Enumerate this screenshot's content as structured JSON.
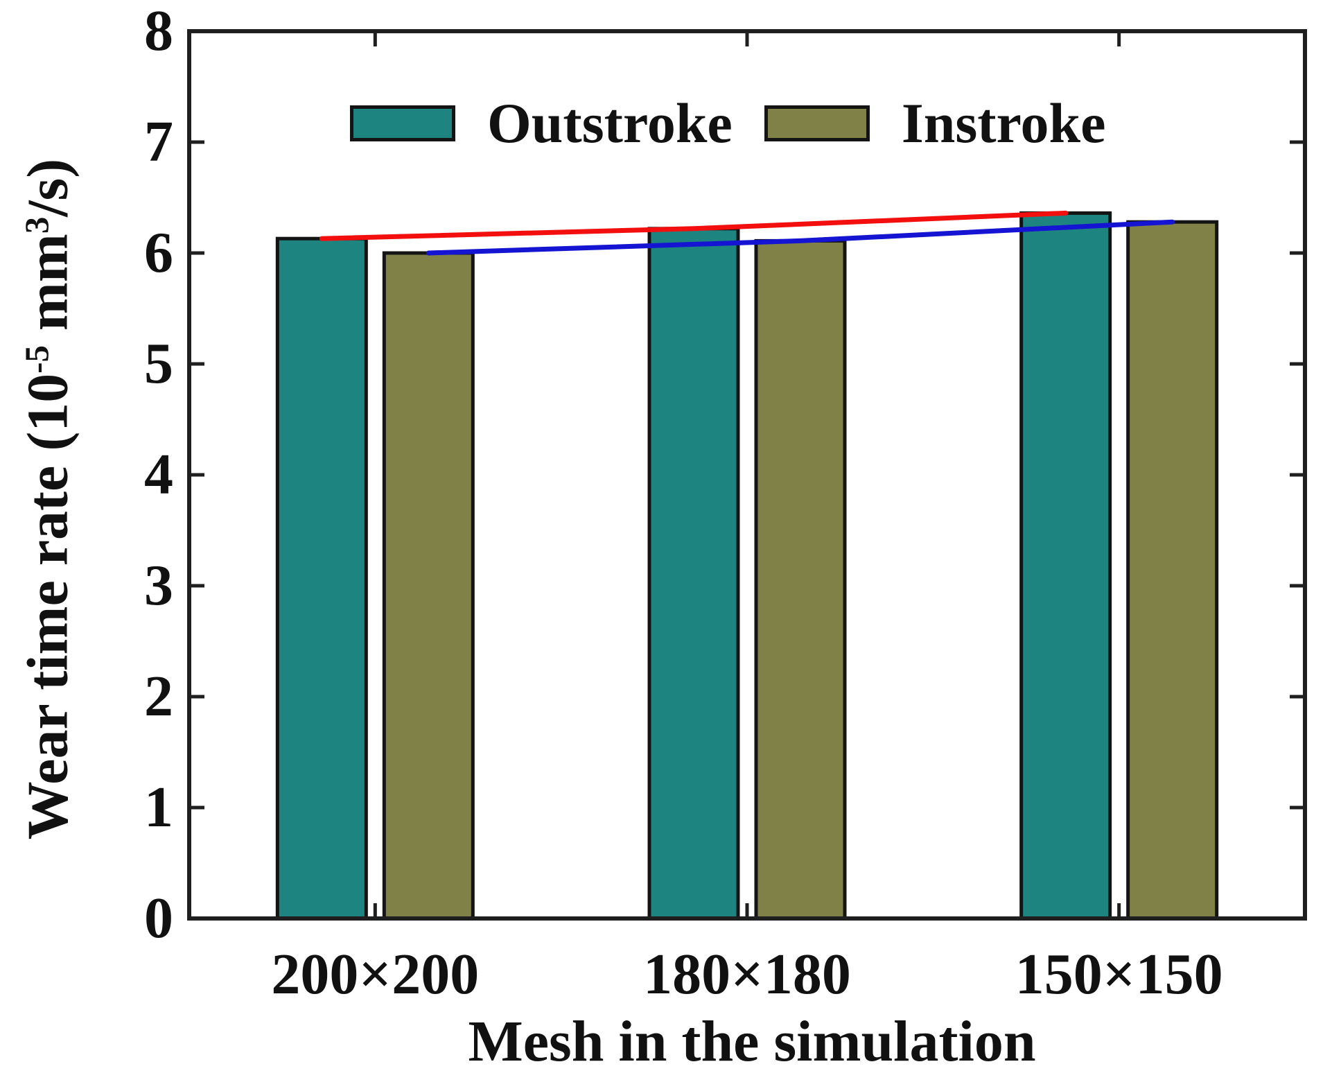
{
  "figure": {
    "background": "#ffffff",
    "ylabel_parts": {
      "pre": "Wear time rate (10",
      "sup1": "-5",
      "mid": " mm",
      "sup2": "3",
      "post": "/s)"
    },
    "xlabel": "Mesh in the simulation"
  },
  "chart_data": {
    "type": "bar",
    "title": "",
    "xlabel": "Mesh in the simulation",
    "ylabel": "Wear time rate (10^-5 mm^3/s)",
    "categories": [
      "200×200",
      "180×180",
      "150×150"
    ],
    "series": [
      {
        "name": "Outstroke",
        "color": "#1e8480",
        "values": [
          6.13,
          6.22,
          6.36
        ]
      },
      {
        "name": "Instroke",
        "color": "#7f8147",
        "values": [
          6.0,
          6.11,
          6.28
        ]
      }
    ],
    "trend_lines": [
      {
        "series": "Outstroke",
        "color": "#f40f0f"
      },
      {
        "series": "Instroke",
        "color": "#1414d2"
      }
    ],
    "ylim": [
      0,
      8
    ],
    "yticks": [
      0,
      1,
      2,
      3,
      4,
      5,
      6,
      7,
      8
    ],
    "grid": false,
    "legend_position": "top-inside",
    "bar_edge_color": "#141414",
    "axis_color": "#1f1f1f"
  }
}
